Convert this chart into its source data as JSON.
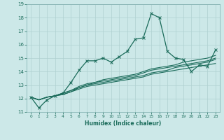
{
  "xlabel": "Humidex (Indice chaleur)",
  "background_color": "#cce8e8",
  "line_color": "#1a6b5a",
  "grid_color": "#afd0d0",
  "xlim": [
    -0.5,
    23.5
  ],
  "ylim": [
    11,
    19
  ],
  "yticks": [
    11,
    12,
    13,
    14,
    15,
    16,
    17,
    18,
    19
  ],
  "xticks": [
    0,
    1,
    2,
    3,
    4,
    5,
    6,
    7,
    8,
    9,
    10,
    11,
    12,
    13,
    14,
    15,
    16,
    17,
    18,
    19,
    20,
    21,
    22,
    23
  ],
  "line1_y": [
    12.1,
    11.3,
    11.9,
    12.2,
    12.4,
    13.2,
    14.1,
    14.8,
    14.8,
    15.0,
    14.7,
    15.1,
    15.5,
    16.4,
    16.5,
    18.3,
    18.0,
    15.5,
    15.0,
    14.9,
    14.0,
    14.5,
    14.4,
    15.6
  ],
  "line2_y": [
    12.1,
    11.9,
    12.1,
    12.2,
    12.3,
    12.5,
    12.7,
    12.9,
    13.0,
    13.1,
    13.2,
    13.3,
    13.4,
    13.5,
    13.6,
    13.8,
    13.9,
    14.0,
    14.1,
    14.2,
    14.3,
    14.4,
    14.5,
    14.6
  ],
  "line3_y": [
    12.1,
    11.9,
    12.1,
    12.2,
    12.3,
    12.5,
    12.8,
    13.0,
    13.1,
    13.2,
    13.3,
    13.4,
    13.5,
    13.6,
    13.7,
    13.9,
    14.0,
    14.1,
    14.3,
    14.4,
    14.5,
    14.6,
    14.7,
    14.9
  ],
  "line4_y": [
    12.1,
    11.9,
    12.1,
    12.2,
    12.4,
    12.6,
    12.8,
    13.0,
    13.2,
    13.3,
    13.4,
    13.5,
    13.6,
    13.7,
    13.9,
    14.1,
    14.2,
    14.3,
    14.4,
    14.5,
    14.6,
    14.7,
    14.8,
    15.0
  ],
  "line5_y": [
    12.1,
    11.9,
    12.1,
    12.2,
    12.4,
    12.6,
    12.9,
    13.1,
    13.2,
    13.4,
    13.5,
    13.6,
    13.7,
    13.8,
    14.0,
    14.2,
    14.3,
    14.4,
    14.5,
    14.7,
    14.8,
    14.9,
    15.0,
    15.2
  ]
}
